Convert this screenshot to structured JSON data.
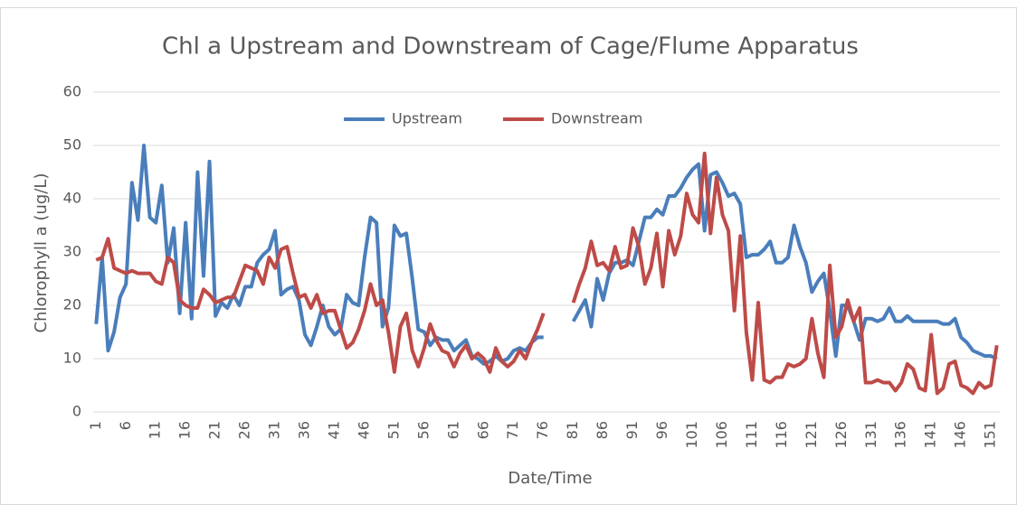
{
  "chart_data": {
    "type": "line",
    "title": "Chl a Upstream and Downstream of Cage/Flume Apparatus",
    "x_label": "Date/Time",
    "y_label": "Chlorophyll a (ug/L)",
    "x": [
      1,
      2,
      3,
      4,
      5,
      6,
      7,
      8,
      9,
      10,
      11,
      12,
      13,
      14,
      15,
      16,
      17,
      18,
      19,
      20,
      21,
      22,
      23,
      24,
      25,
      26,
      27,
      28,
      29,
      30,
      31,
      32,
      33,
      34,
      35,
      36,
      37,
      38,
      39,
      40,
      41,
      42,
      43,
      44,
      45,
      46,
      47,
      48,
      49,
      50,
      51,
      52,
      53,
      54,
      55,
      56,
      57,
      58,
      59,
      60,
      61,
      62,
      63,
      64,
      65,
      66,
      67,
      68,
      69,
      70,
      71,
      72,
      73,
      74,
      75,
      76,
      77,
      78,
      79,
      80,
      81,
      82,
      83,
      84,
      85,
      86,
      87,
      88,
      89,
      90,
      91,
      92,
      93,
      94,
      95,
      96,
      97,
      98,
      99,
      100,
      101,
      102,
      103,
      104,
      105,
      106,
      107,
      108,
      109,
      110,
      111,
      112,
      113,
      114,
      115,
      116,
      117,
      118,
      119,
      120,
      121,
      122,
      123,
      124,
      125,
      126,
      127,
      128,
      129,
      130,
      131,
      132,
      133,
      134,
      135,
      136,
      137,
      138,
      139,
      140,
      141,
      142,
      143,
      144,
      145,
      146,
      147,
      148,
      149,
      150,
      151,
      152
    ],
    "xlim": [
      0.5,
      152.5
    ],
    "xticks": [
      1,
      6,
      11,
      16,
      21,
      26,
      31,
      36,
      41,
      46,
      51,
      56,
      61,
      66,
      71,
      76,
      81,
      86,
      91,
      96,
      101,
      106,
      111,
      116,
      121,
      126,
      131,
      136,
      141,
      146,
      151
    ],
    "ylim": [
      0,
      60
    ],
    "yticks": [
      0,
      10,
      20,
      30,
      40,
      50,
      60
    ],
    "grid": true,
    "legend": "top",
    "series": [
      {
        "name": "Upstream",
        "color": "#4a7ebb",
        "values": [
          16.5,
          29,
          11.5,
          15,
          21.5,
          24,
          43,
          36,
          50,
          36.5,
          35.5,
          42.5,
          28,
          34.5,
          18.5,
          35.5,
          17.5,
          45,
          25.5,
          47,
          18,
          20.5,
          19.5,
          22,
          20,
          23.5,
          23.5,
          28,
          29.5,
          30.5,
          34,
          22,
          23,
          23.5,
          21,
          14.5,
          12.5,
          16,
          20,
          16,
          14.5,
          15.5,
          22,
          20.5,
          20,
          29,
          36.5,
          35.5,
          16,
          19.5,
          35,
          33,
          33.5,
          25,
          15.5,
          15,
          12.5,
          14,
          13.5,
          13.5,
          11.5,
          12.5,
          13.5,
          10.5,
          10,
          9,
          9.5,
          10.5,
          9.5,
          10,
          11.5,
          12,
          11.5,
          13,
          14,
          14,
          null,
          null,
          null,
          null,
          17,
          19,
          21,
          16,
          25,
          21,
          26,
          28,
          28,
          28.5,
          27.5,
          32,
          36.5,
          36.5,
          38,
          37,
          40.5,
          40.5,
          42,
          44,
          45.5,
          46.5,
          34,
          44.5,
          45,
          43,
          40.5,
          41,
          39,
          29,
          29.5,
          29.5,
          30.5,
          32,
          28,
          28,
          29,
          35,
          31,
          28,
          22.5,
          24.5,
          26,
          19,
          10.5,
          20,
          20,
          17,
          13.5,
          17.5,
          17.5,
          17,
          17.5,
          19.5,
          17,
          17,
          18,
          17,
          17,
          17,
          17,
          17,
          16.5,
          16.5,
          17.5,
          14,
          13,
          11.5,
          11,
          10.5,
          10.5,
          10
        ]
      },
      {
        "name": "Downstream",
        "color": "#be4b48",
        "values": [
          28.5,
          29,
          32.5,
          27,
          26.5,
          26,
          26.5,
          26,
          26,
          26,
          24.5,
          24,
          29,
          28,
          21,
          20,
          19.5,
          19.5,
          23,
          22,
          20.5,
          21,
          21.5,
          21.5,
          24.5,
          27.5,
          27,
          26.5,
          24,
          29,
          27,
          30.5,
          31,
          26,
          21.5,
          22,
          19.5,
          22,
          18.5,
          19,
          19,
          15.5,
          12,
          13,
          15.5,
          19,
          24,
          20,
          21,
          15,
          7.5,
          16,
          18.5,
          11.5,
          8.5,
          12,
          16.5,
          13.5,
          11.5,
          11,
          8.5,
          11,
          12.5,
          10,
          11,
          10,
          7.5,
          12,
          9.5,
          8.5,
          9.5,
          11.5,
          10,
          13,
          15.5,
          18.5,
          null,
          null,
          null,
          null,
          20.5,
          24,
          27,
          32,
          27.5,
          28,
          26.5,
          31,
          27,
          27.5,
          34.5,
          31,
          24,
          27,
          33.5,
          23.5,
          34,
          29.5,
          33,
          41,
          37,
          35.5,
          48.5,
          33.5,
          44,
          37,
          34,
          19,
          33,
          15,
          6,
          20.5,
          6,
          5.5,
          6.5,
          6.5,
          9,
          8.5,
          9,
          10,
          17.5,
          11,
          6.5,
          27.5,
          14,
          16,
          21,
          17,
          19.5,
          5.5,
          5.5,
          6,
          5.5,
          5.5,
          4,
          5.5,
          9,
          8,
          4.5,
          4,
          14.5,
          3.5,
          4.5,
          9,
          9.5,
          5,
          4.5,
          3.5,
          5.5,
          4.5,
          5,
          12.5
        ]
      }
    ]
  }
}
